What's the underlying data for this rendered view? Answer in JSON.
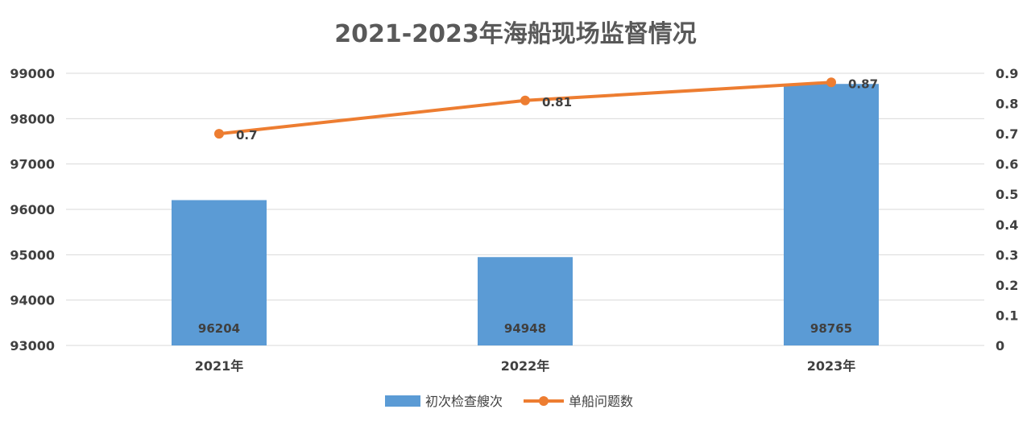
{
  "chart_data": {
    "type": "bar+line",
    "title": "2021-2023年海船现场监督情况",
    "categories": [
      "2021年",
      "2022年",
      "2023年"
    ],
    "series": [
      {
        "name": "初次检查艘次",
        "type": "bar",
        "axis": "left",
        "values": [
          96204,
          94948,
          98765
        ],
        "color": "#5b9bd5"
      },
      {
        "name": "单船问题数",
        "type": "line",
        "axis": "right",
        "values": [
          0.7,
          0.81,
          0.87
        ],
        "color": "#ed7d31"
      }
    ],
    "y_left": {
      "min": 93000,
      "max": 99000,
      "ticks": [
        "99000",
        "98000",
        "97000",
        "96000",
        "95000",
        "94000",
        "93000"
      ]
    },
    "y_right": {
      "min": 0,
      "max": 0.9,
      "ticks": [
        "0.9",
        "0.8",
        "0.7",
        "0.6",
        "0.5",
        "0.4",
        "0.3",
        "0.2",
        "0.1",
        "0"
      ]
    },
    "bar_labels": [
      "96204",
      "94948",
      "98765"
    ],
    "line_labels": [
      "0.7",
      "0.81",
      "0.87"
    ],
    "grid": true,
    "legend_position": "bottom"
  }
}
